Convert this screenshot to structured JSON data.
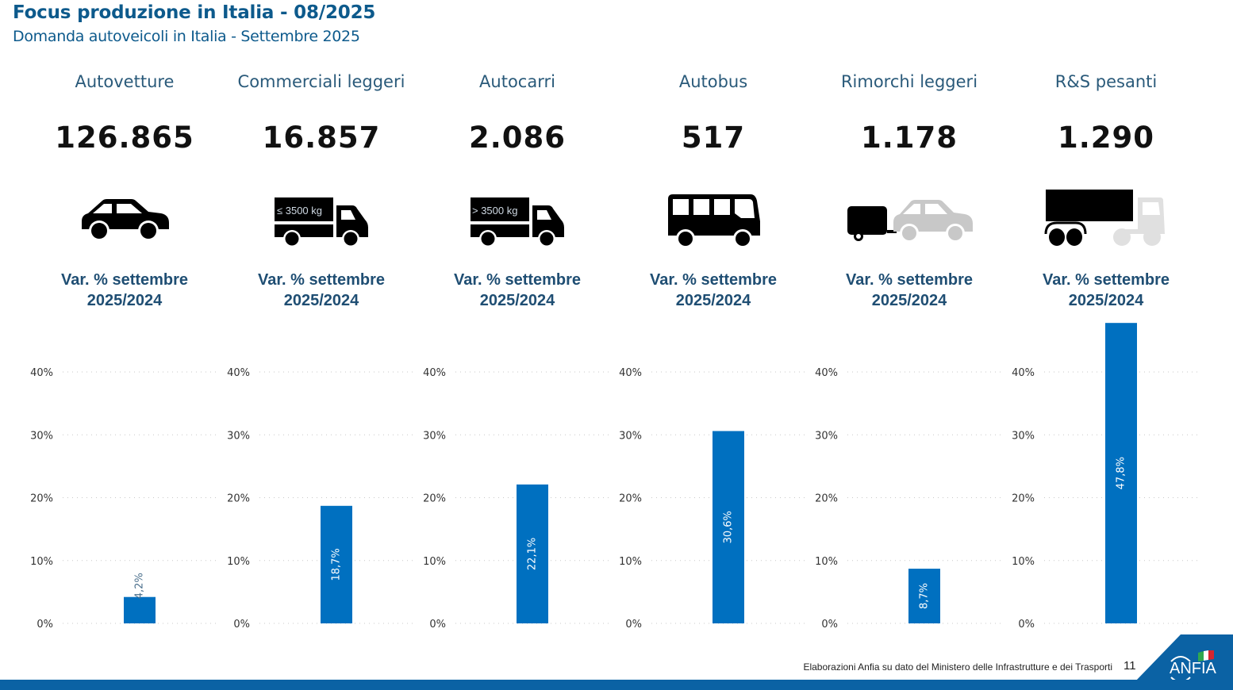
{
  "header": {
    "title": "Focus produzione in Italia - 08/2025",
    "subtitle": "Domanda autoveicoli in Italia - Settembre 2025"
  },
  "categories": [
    {
      "name": "Autovetture",
      "value": "126.865",
      "icon": "car-icon",
      "badge": "",
      "var_label_1": "Var. % settembre",
      "var_label_2": "2025/2024"
    },
    {
      "name": "Commerciali leggeri",
      "value": "16.857",
      "icon": "light-truck-icon",
      "badge": "≤ 3500 kg",
      "var_label_1": "Var. % settembre",
      "var_label_2": "2025/2024"
    },
    {
      "name": "Autocarri",
      "value": "2.086",
      "icon": "heavy-truck-icon",
      "badge": "> 3500 kg",
      "var_label_1": "Var. % settembre",
      "var_label_2": "2025/2024"
    },
    {
      "name": "Autobus",
      "value": "517",
      "icon": "bus-icon",
      "badge": "",
      "var_label_1": "Var. % settembre",
      "var_label_2": "2025/2024"
    },
    {
      "name": "Rimorchi leggeri",
      "value": "1.178",
      "icon": "light-trailer-icon",
      "badge": "",
      "var_label_1": "Var. % settembre",
      "var_label_2": "2025/2024"
    },
    {
      "name": "R&S pesanti",
      "value": "1.290",
      "icon": "heavy-semitrailer-icon",
      "badge": "",
      "var_label_1": "Var. % settembre",
      "var_label_2": "2025/2024"
    }
  ],
  "chart_data": [
    {
      "type": "bar",
      "title": "Autovetture",
      "categories": [
        "Var. % settembre 2025/2024"
      ],
      "values": [
        4.2
      ],
      "data_labels": [
        "4,2%"
      ],
      "yticks": [
        "0%",
        "10%",
        "20%",
        "30%",
        "40%"
      ],
      "ylim": [
        0,
        40
      ],
      "grid": true,
      "color": "#0070c0",
      "label_position": "outside"
    },
    {
      "type": "bar",
      "title": "Commerciali leggeri",
      "categories": [
        "Var. % settembre 2025/2024"
      ],
      "values": [
        18.7
      ],
      "data_labels": [
        "18,7%"
      ],
      "yticks": [
        "0%",
        "10%",
        "20%",
        "30%",
        "40%"
      ],
      "ylim": [
        0,
        40
      ],
      "grid": true,
      "color": "#0070c0",
      "label_position": "inside"
    },
    {
      "type": "bar",
      "title": "Autocarri",
      "categories": [
        "Var. % settembre 2025/2024"
      ],
      "values": [
        22.1
      ],
      "data_labels": [
        "22,1%"
      ],
      "yticks": [
        "0%",
        "10%",
        "20%",
        "30%",
        "40%"
      ],
      "ylim": [
        0,
        40
      ],
      "grid": true,
      "color": "#0070c0",
      "label_position": "inside"
    },
    {
      "type": "bar",
      "title": "Autobus",
      "categories": [
        "Var. % settembre 2025/2024"
      ],
      "values": [
        30.6
      ],
      "data_labels": [
        "30,6%"
      ],
      "yticks": [
        "0%",
        "10%",
        "20%",
        "30%",
        "40%"
      ],
      "ylim": [
        0,
        40
      ],
      "grid": true,
      "color": "#0070c0",
      "label_position": "inside"
    },
    {
      "type": "bar",
      "title": "Rimorchi leggeri",
      "categories": [
        "Var. % settembre 2025/2024"
      ],
      "values": [
        8.7
      ],
      "data_labels": [
        "8,7%"
      ],
      "yticks": [
        "0%",
        "10%",
        "20%",
        "30%",
        "40%"
      ],
      "ylim": [
        0,
        40
      ],
      "grid": true,
      "color": "#0070c0",
      "label_position": "inside"
    },
    {
      "type": "bar",
      "title": "R&S pesanti",
      "categories": [
        "Var. % settembre 2025/2024"
      ],
      "values": [
        47.8
      ],
      "data_labels": [
        "47,8%"
      ],
      "yticks": [
        "0%",
        "10%",
        "20%",
        "30%",
        "40%"
      ],
      "ylim": [
        0,
        40
      ],
      "grid": true,
      "color": "#0070c0",
      "label_position": "inside"
    }
  ],
  "footer": {
    "source": "Elaborazioni Anfia su dato del Ministero delle Infrastrutture e dei Trasporti",
    "page_number": "11",
    "logo_text": "ANFIA"
  },
  "colors": {
    "title": "#0d5a8c",
    "bar": "#0070c0",
    "footer_bar": "#0b62a4"
  }
}
